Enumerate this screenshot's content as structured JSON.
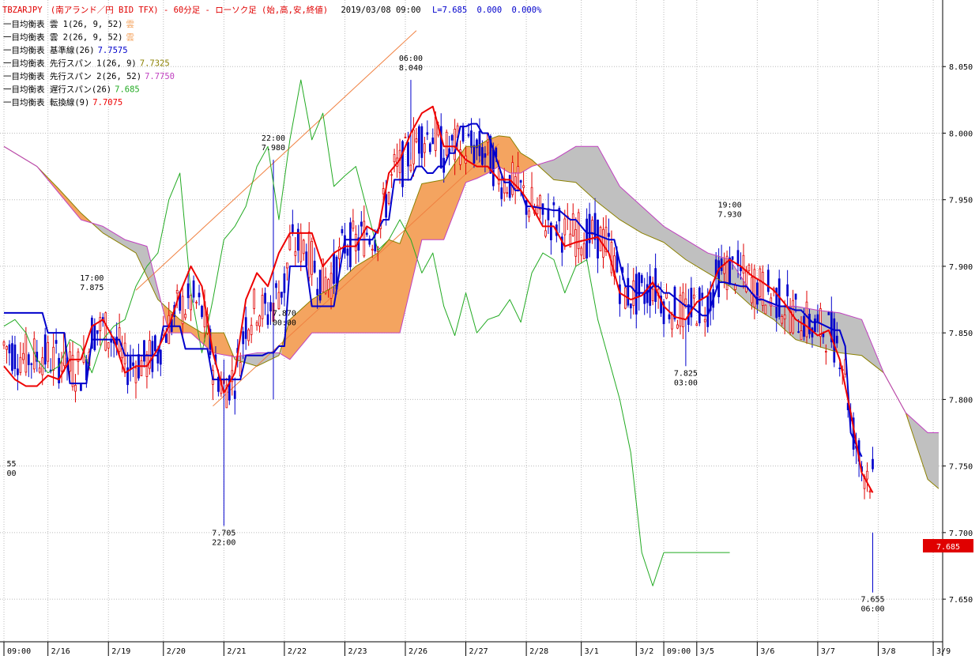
{
  "header": {
    "symbol": "TBZARJPY",
    "description": "(南アランド／円 BID TFX) - 60分足 - ローソク足 (始,高,安,終値)",
    "datetime": "2019/03/08 09:00",
    "last": "L=7.685",
    "change": "0.000",
    "change_pct": "0.000%"
  },
  "legend": [
    {
      "label": "一目均衡表 雲 1(26, 9, 52)",
      "value": "雲",
      "color": "#f4a460"
    },
    {
      "label": "一目均衡表 雲 2(26, 9, 52)",
      "value": "雲",
      "color": "#f4a460"
    },
    {
      "label": "一目均衡表 基準線(26)",
      "value": "7.7575",
      "color": "#0000cc"
    },
    {
      "label": "一目均衡表 先行スパン 1(26, 9)",
      "value": "7.7325",
      "color": "#8b8000"
    },
    {
      "label": "一目均衡表 先行スパン 2(26, 52)",
      "value": "7.7750",
      "color": "#c040c0"
    },
    {
      "label": "一目均衡表 遅行スパン(26)",
      "value": "7.685",
      "color": "#22aa22"
    },
    {
      "label": "一目均衡表 転換線(9)",
      "value": "7.7075",
      "color": "#ee0000"
    }
  ],
  "price_tag": "7.685",
  "chart_data": {
    "type": "line",
    "title": "TBZARJPY (南アランド／円 BID TFX) - 60分足 - ローソク足 (始,高,安,終値)",
    "ylim": [
      7.618,
      8.1
    ],
    "y_ticks": [
      "8.050",
      "8.000",
      "7.950",
      "7.900",
      "7.850",
      "7.800",
      "7.750",
      "7.700",
      "7.650"
    ],
    "y_tick_values": [
      8.05,
      8.0,
      7.95,
      7.9,
      7.85,
      7.8,
      7.75,
      7.7,
      7.65
    ],
    "x_labels": [
      "09:00",
      "2/16",
      "2/19",
      "2/20",
      "2/21",
      "2/22",
      "2/23",
      "2/26",
      "2/27",
      "2/28",
      "3/1",
      "3/2",
      "09:00",
      "3/5",
      "3/6",
      "3/7",
      "3/8",
      "3/9"
    ],
    "x_index": [
      0,
      8,
      19,
      29,
      40,
      51,
      62,
      73,
      84,
      95,
      105,
      115,
      120,
      126,
      137,
      148,
      159,
      169
    ],
    "n_index": 171,
    "grid": true,
    "annotations": [
      {
        "x": 16,
        "y": 7.875,
        "text": [
          "17:00",
          "7.875"
        ],
        "pos": "above"
      },
      {
        "x": 49,
        "y": 7.98,
        "text": [
          "22:00",
          "7.980"
        ],
        "pos": "above"
      },
      {
        "x": 74,
        "y": 8.04,
        "text": [
          "06:00",
          "8.040"
        ],
        "pos": "above"
      },
      {
        "x": 132,
        "y": 7.93,
        "text": [
          "19:00",
          "7.930"
        ],
        "pos": "above"
      },
      {
        "x": 40,
        "y": 7.705,
        "text": [
          "7.705",
          "22:00"
        ],
        "pos": "below"
      },
      {
        "x": 51,
        "y": 7.87,
        "text": [
          "7.870",
          "00:00"
        ],
        "pos": "below"
      },
      {
        "x": 124,
        "y": 7.825,
        "text": [
          "7.825",
          "03:00"
        ],
        "pos": "below"
      },
      {
        "x": 158,
        "y": 7.655,
        "text": [
          "7.655",
          "06:00"
        ],
        "pos": "below"
      },
      {
        "x": 0.5,
        "y": 7.757,
        "text": [
          "55",
          "00"
        ],
        "pos": "below"
      }
    ],
    "channel_lines": [
      {
        "from": [
          24,
          7.882
        ],
        "to": [
          75,
          8.077
        ]
      },
      {
        "from": [
          38,
          7.795
        ],
        "to": [
          90,
          7.992
        ]
      }
    ],
    "series": [
      {
        "name": "一目均衡表 基準線(26)",
        "color": "#0000cc",
        "width": 2,
        "x": [
          0,
          7,
          8,
          11,
          12,
          15,
          16,
          21,
          22,
          28,
          29,
          32,
          33,
          37,
          38,
          43,
          44,
          47,
          48,
          49,
          50,
          51,
          52,
          55,
          56,
          60,
          62,
          67,
          69,
          70,
          71,
          74,
          75,
          76,
          77,
          78,
          79,
          80,
          81,
          82,
          83,
          84,
          85,
          86,
          87,
          88,
          91,
          92,
          93,
          94,
          95,
          96,
          100,
          101,
          103,
          104,
          106,
          107,
          110,
          111,
          113,
          114,
          115,
          117,
          118,
          119,
          120,
          121,
          124,
          125,
          127,
          128,
          130,
          131,
          134,
          135,
          137,
          138,
          141,
          142,
          144,
          145,
          147,
          148,
          151,
          152,
          153,
          154,
          156
        ],
        "y": [
          7.865,
          7.865,
          7.85,
          7.85,
          7.812,
          7.812,
          7.845,
          7.845,
          7.833,
          7.833,
          7.855,
          7.855,
          7.838,
          7.838,
          7.815,
          7.815,
          7.833,
          7.833,
          7.835,
          7.835,
          7.84,
          7.84,
          7.9,
          7.9,
          7.87,
          7.87,
          7.92,
          7.92,
          7.935,
          7.935,
          7.965,
          7.965,
          7.975,
          7.975,
          7.97,
          7.97,
          7.975,
          7.975,
          7.985,
          7.985,
          8.005,
          8.005,
          8.007,
          8.007,
          8.0,
          8.0,
          7.963,
          7.963,
          7.957,
          7.957,
          7.945,
          7.945,
          7.942,
          7.942,
          7.935,
          7.935,
          7.925,
          7.925,
          7.92,
          7.92,
          7.885,
          7.885,
          7.88,
          7.88,
          7.885,
          7.885,
          7.88,
          7.88,
          7.87,
          7.87,
          7.863,
          7.863,
          7.888,
          7.888,
          7.885,
          7.885,
          7.875,
          7.875,
          7.87,
          7.87,
          7.867,
          7.867,
          7.858,
          7.858,
          7.852,
          7.852,
          7.84,
          7.775,
          7.757
        ]
      },
      {
        "name": "一目均衡表 転換線(9)",
        "color": "#ee0000",
        "width": 2,
        "x": [
          0,
          2,
          4,
          6,
          8,
          10,
          12,
          14,
          16,
          18,
          20,
          22,
          24,
          26,
          28,
          30,
          32,
          34,
          36,
          38,
          40,
          42,
          44,
          46,
          48,
          50,
          52,
          54,
          56,
          58,
          60,
          62,
          64,
          66,
          68,
          70,
          72,
          74,
          76,
          78,
          80,
          82,
          84,
          86,
          88,
          90,
          92,
          94,
          96,
          98,
          100,
          102,
          104,
          106,
          108,
          110,
          112,
          114,
          116,
          118,
          120,
          122,
          124,
          126,
          128,
          130,
          132,
          134,
          136,
          138,
          140,
          142,
          144,
          146,
          148,
          150,
          152,
          154,
          156,
          158
        ],
        "y": [
          7.825,
          7.815,
          7.81,
          7.81,
          7.818,
          7.815,
          7.83,
          7.83,
          7.855,
          7.86,
          7.845,
          7.82,
          7.825,
          7.825,
          7.838,
          7.855,
          7.88,
          7.9,
          7.885,
          7.835,
          7.805,
          7.82,
          7.875,
          7.895,
          7.885,
          7.91,
          7.925,
          7.925,
          7.925,
          7.9,
          7.91,
          7.915,
          7.915,
          7.93,
          7.925,
          7.97,
          7.98,
          8.0,
          8.015,
          8.02,
          7.99,
          7.99,
          7.98,
          7.975,
          7.975,
          7.965,
          7.965,
          7.957,
          7.945,
          7.93,
          7.93,
          7.915,
          7.918,
          7.92,
          7.922,
          7.91,
          7.88,
          7.875,
          7.878,
          7.888,
          7.87,
          7.862,
          7.86,
          7.873,
          7.878,
          7.898,
          7.905,
          7.9,
          7.893,
          7.888,
          7.882,
          7.872,
          7.86,
          7.855,
          7.848,
          7.852,
          7.83,
          7.79,
          7.745,
          7.73
        ]
      },
      {
        "name": "一目均衡表 遅行スパン(26)",
        "color": "#22aa22",
        "width": 1,
        "x": [
          0,
          2,
          4,
          6,
          8,
          10,
          12,
          14,
          16,
          18,
          20,
          22,
          24,
          26,
          28,
          30,
          32,
          34,
          36,
          38,
          40,
          42,
          44,
          46,
          48,
          50,
          52,
          54,
          56,
          58,
          60,
          62,
          64,
          66,
          68,
          70,
          72,
          74,
          76,
          78,
          80,
          82,
          84,
          86,
          88,
          90,
          92,
          94,
          96,
          98,
          100,
          102,
          104,
          106,
          108,
          110,
          112,
          114,
          116,
          118,
          120,
          122,
          124,
          126,
          128,
          130,
          132
        ],
        "y": [
          7.855,
          7.86,
          7.85,
          7.83,
          7.82,
          7.825,
          7.845,
          7.84,
          7.82,
          7.845,
          7.855,
          7.86,
          7.885,
          7.9,
          7.91,
          7.95,
          7.97,
          7.88,
          7.835,
          7.875,
          7.92,
          7.93,
          7.945,
          7.975,
          7.99,
          7.935,
          7.995,
          8.04,
          7.995,
          8.015,
          7.96,
          7.968,
          7.975,
          7.943,
          7.912,
          7.92,
          7.935,
          7.92,
          7.895,
          7.91,
          7.87,
          7.848,
          7.88,
          7.85,
          7.86,
          7.863,
          7.875,
          7.858,
          7.895,
          7.91,
          7.905,
          7.88,
          7.9,
          7.905,
          7.86,
          7.83,
          7.8,
          7.76,
          7.685,
          7.66,
          7.685,
          7.685,
          7.685,
          7.685,
          7.685,
          7.685,
          7.685
        ],
        "x_offset": 0
      },
      {
        "name": "一目均衡表 先行スパン 1(26, 9)",
        "color": "#8b8000",
        "width": 1,
        "x": [
          0,
          6,
          10,
          14,
          18,
          24,
          28,
          32,
          36,
          40,
          42,
          46,
          50,
          52,
          56,
          60,
          64,
          68,
          70,
          72,
          76,
          80,
          84,
          86,
          88,
          90,
          92,
          94,
          96,
          100,
          104,
          108,
          112,
          116,
          120,
          124,
          128,
          132,
          136,
          140,
          144,
          148,
          152,
          156,
          160,
          164,
          168,
          170
        ],
        "y": [
          7.99,
          7.975,
          7.958,
          7.94,
          7.925,
          7.91,
          7.875,
          7.86,
          7.85,
          7.85,
          7.83,
          7.825,
          7.833,
          7.86,
          7.875,
          7.885,
          7.9,
          7.91,
          7.92,
          7.917,
          7.962,
          7.965,
          7.99,
          7.99,
          7.995,
          7.998,
          7.997,
          7.985,
          7.98,
          7.965,
          7.963,
          7.948,
          7.935,
          7.925,
          7.918,
          7.905,
          7.895,
          7.885,
          7.87,
          7.86,
          7.845,
          7.84,
          7.835,
          7.833,
          7.82,
          7.79,
          7.74,
          7.733
        ]
      },
      {
        "name": "一目均衡表 先行スパン 2(26, 52)",
        "color": "#c040c0",
        "width": 1,
        "x": [
          0,
          6,
          10,
          14,
          18,
          22,
          26,
          30,
          34,
          38,
          42,
          46,
          50,
          52,
          56,
          60,
          64,
          68,
          70,
          72,
          76,
          80,
          84,
          86,
          88,
          90,
          92,
          94,
          96,
          100,
          104,
          108,
          112,
          116,
          120,
          124,
          128,
          132,
          136,
          140,
          144,
          148,
          152,
          156,
          160,
          164,
          168,
          170
        ],
        "y": [
          7.99,
          7.975,
          7.955,
          7.935,
          7.93,
          7.92,
          7.915,
          7.85,
          7.85,
          7.835,
          7.832,
          7.835,
          7.835,
          7.83,
          7.85,
          7.85,
          7.85,
          7.85,
          7.85,
          7.85,
          7.92,
          7.92,
          7.963,
          7.966,
          7.97,
          7.975,
          7.97,
          7.97,
          7.975,
          7.98,
          7.99,
          7.99,
          7.96,
          7.945,
          7.93,
          7.92,
          7.91,
          7.905,
          7.88,
          7.87,
          7.87,
          7.867,
          7.865,
          7.86,
          7.82,
          7.79,
          7.775,
          7.775
        ]
      }
    ]
  }
}
